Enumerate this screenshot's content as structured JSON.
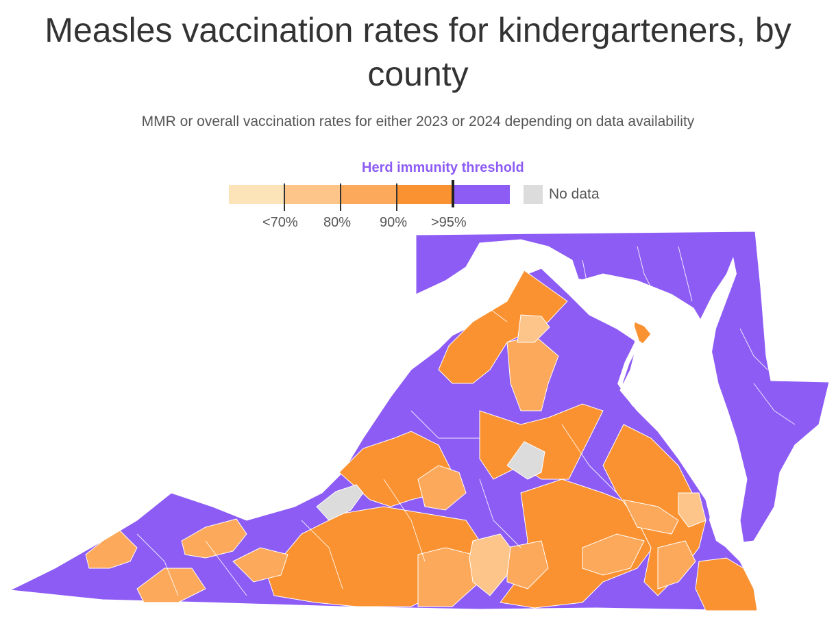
{
  "title": "Measles vaccination rates for kindergarteners, by county",
  "subtitle": "MMR or overall vaccination rates for either 2023 or 2024 depending on data availability",
  "legend": {
    "threshold_label": "Herd immunity threshold",
    "bins": [
      {
        "label": "<70%",
        "color": "#fde3b8"
      },
      {
        "label": "80%",
        "color": "#fdc58a"
      },
      {
        "label": "90%",
        "color": "#fca95b"
      },
      {
        "label": ">95%",
        "color": "#fb9231"
      },
      {
        "label": "",
        "color": "#8d5cf5"
      }
    ],
    "no_data_label": "No data",
    "no_data_color": "#dcdcdc"
  },
  "map": {
    "region": "Virginia, Maryland, Delaware and Washington D.C.",
    "palette": {
      "lt70": "#fde3b8",
      "r70_80": "#fdc58a",
      "r80_90": "#fca95b",
      "r90_95": "#fb9231",
      "gt95": "#8d5cf5",
      "nodata": "#dcdcdc"
    }
  }
}
